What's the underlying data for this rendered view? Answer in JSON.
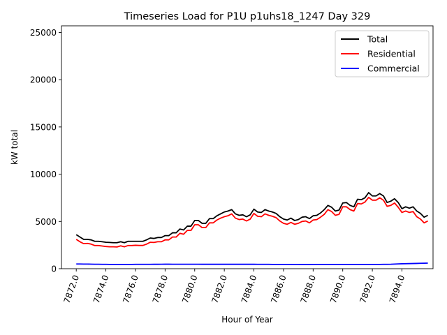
{
  "chart_data": {
    "type": "line",
    "title": "Timeseries Load for P1U p1uhs18_1247  Day 329",
    "xlabel": "Hour of Year",
    "ylabel": "kW total",
    "xlim": [
      7871.0,
      7896.1
    ],
    "ylim": [
      0,
      25700
    ],
    "xticks": [
      7872,
      7874,
      7876,
      7878,
      7880,
      7882,
      7884,
      7886,
      7888,
      7890,
      7892,
      7894
    ],
    "xtick_labels": [
      "7872.0",
      "7874.0",
      "7876.0",
      "7878.0",
      "7880.0",
      "7882.0",
      "7884.0",
      "7886.0",
      "7888.0",
      "7890.0",
      "7892.0",
      "7894.0"
    ],
    "yticks": [
      0,
      5000,
      10000,
      15000,
      20000,
      25000
    ],
    "ytick_labels": [
      "0",
      "5000",
      "10000",
      "15000",
      "20000",
      "25000"
    ],
    "legend_position": "top-right",
    "x": [
      7872.0,
      7872.25,
      7872.5,
      7872.75,
      7873.0,
      7873.25,
      7873.5,
      7873.75,
      7874.0,
      7874.25,
      7874.5,
      7874.75,
      7875.0,
      7875.25,
      7875.5,
      7875.75,
      7876.0,
      7876.25,
      7876.5,
      7876.75,
      7877.0,
      7877.25,
      7877.5,
      7877.75,
      7878.0,
      7878.25,
      7878.5,
      7878.75,
      7879.0,
      7879.25,
      7879.5,
      7879.75,
      7880.0,
      7880.25,
      7880.5,
      7880.75,
      7881.0,
      7881.25,
      7881.5,
      7881.75,
      7882.0,
      7882.25,
      7882.5,
      7882.75,
      7883.0,
      7883.25,
      7883.5,
      7883.75,
      7884.0,
      7884.25,
      7884.5,
      7884.75,
      7885.0,
      7885.25,
      7885.5,
      7885.75,
      7886.0,
      7886.25,
      7886.5,
      7886.75,
      7887.0,
      7887.25,
      7887.5,
      7887.75,
      7888.0,
      7888.25,
      7888.5,
      7888.75,
      7889.0,
      7889.25,
      7889.5,
      7889.75,
      7890.0,
      7890.25,
      7890.5,
      7890.75,
      7891.0,
      7891.25,
      7891.5,
      7891.75,
      7892.0,
      7892.25,
      7892.5,
      7892.75,
      7893.0,
      7893.25,
      7893.5,
      7893.75,
      7894.0,
      7894.25,
      7894.5,
      7894.75,
      7895.0,
      7895.25,
      7895.5,
      7895.75
    ],
    "series": [
      {
        "name": "Total",
        "color": "#000000",
        "values": [
          3600,
          3350,
          3100,
          3100,
          3050,
          2900,
          2900,
          2850,
          2800,
          2780,
          2750,
          2750,
          2850,
          2750,
          2900,
          2900,
          2900,
          2900,
          2900,
          3050,
          3250,
          3200,
          3300,
          3300,
          3500,
          3500,
          3800,
          3800,
          4200,
          4100,
          4500,
          4500,
          5100,
          5100,
          4800,
          4800,
          5300,
          5300,
          5600,
          5800,
          6000,
          6100,
          6250,
          5800,
          5650,
          5700,
          5500,
          5700,
          6300,
          6000,
          5950,
          6250,
          6100,
          6000,
          5850,
          5500,
          5250,
          5150,
          5350,
          5100,
          5200,
          5450,
          5500,
          5300,
          5600,
          5650,
          5900,
          6250,
          6700,
          6500,
          6100,
          6200,
          6950,
          7000,
          6700,
          6550,
          7350,
          7300,
          7500,
          8050,
          7700,
          7700,
          7950,
          7700,
          7000,
          7150,
          7400,
          7000,
          6350,
          6550,
          6400,
          6550,
          6100,
          5850,
          5450,
          5650
        ]
      },
      {
        "name": "Residential",
        "color": "#ff0000",
        "values": [
          3100,
          2850,
          2650,
          2680,
          2600,
          2450,
          2450,
          2400,
          2350,
          2320,
          2320,
          2300,
          2420,
          2320,
          2450,
          2450,
          2480,
          2460,
          2460,
          2600,
          2800,
          2780,
          2850,
          2850,
          3050,
          3050,
          3350,
          3350,
          3750,
          3650,
          4050,
          4050,
          4650,
          4650,
          4350,
          4350,
          4850,
          4850,
          5150,
          5350,
          5500,
          5600,
          5800,
          5350,
          5200,
          5250,
          5050,
          5250,
          5850,
          5550,
          5500,
          5800,
          5650,
          5550,
          5400,
          5050,
          4800,
          4700,
          4900,
          4700,
          4800,
          5000,
          5050,
          4850,
          5150,
          5200,
          5450,
          5750,
          6250,
          6050,
          5650,
          5750,
          6550,
          6550,
          6250,
          6100,
          6900,
          6850,
          7050,
          7550,
          7250,
          7250,
          7500,
          7250,
          6600,
          6700,
          6950,
          6500,
          5950,
          6100,
          5950,
          6050,
          5500,
          5250,
          4850,
          5050
        ]
      },
      {
        "name": "Commercial",
        "color": "#0000ff",
        "values": [
          500,
          500,
          490,
          490,
          480,
          470,
          470,
          460,
          460,
          455,
          450,
          450,
          450,
          450,
          450,
          450,
          460,
          460,
          460,
          460,
          460,
          465,
          465,
          470,
          475,
          475,
          470,
          470,
          470,
          470,
          470,
          470,
          470,
          470,
          465,
          465,
          465,
          465,
          465,
          465,
          465,
          465,
          465,
          465,
          465,
          465,
          465,
          465,
          465,
          460,
          460,
          460,
          460,
          455,
          455,
          450,
          450,
          450,
          450,
          445,
          445,
          440,
          440,
          440,
          445,
          450,
          450,
          455,
          455,
          455,
          455,
          455,
          455,
          455,
          455,
          455,
          455,
          455,
          455,
          455,
          455,
          455,
          455,
          460,
          460,
          470,
          490,
          510,
          520,
          530,
          540,
          550,
          560,
          570,
          580,
          590
        ]
      }
    ]
  }
}
